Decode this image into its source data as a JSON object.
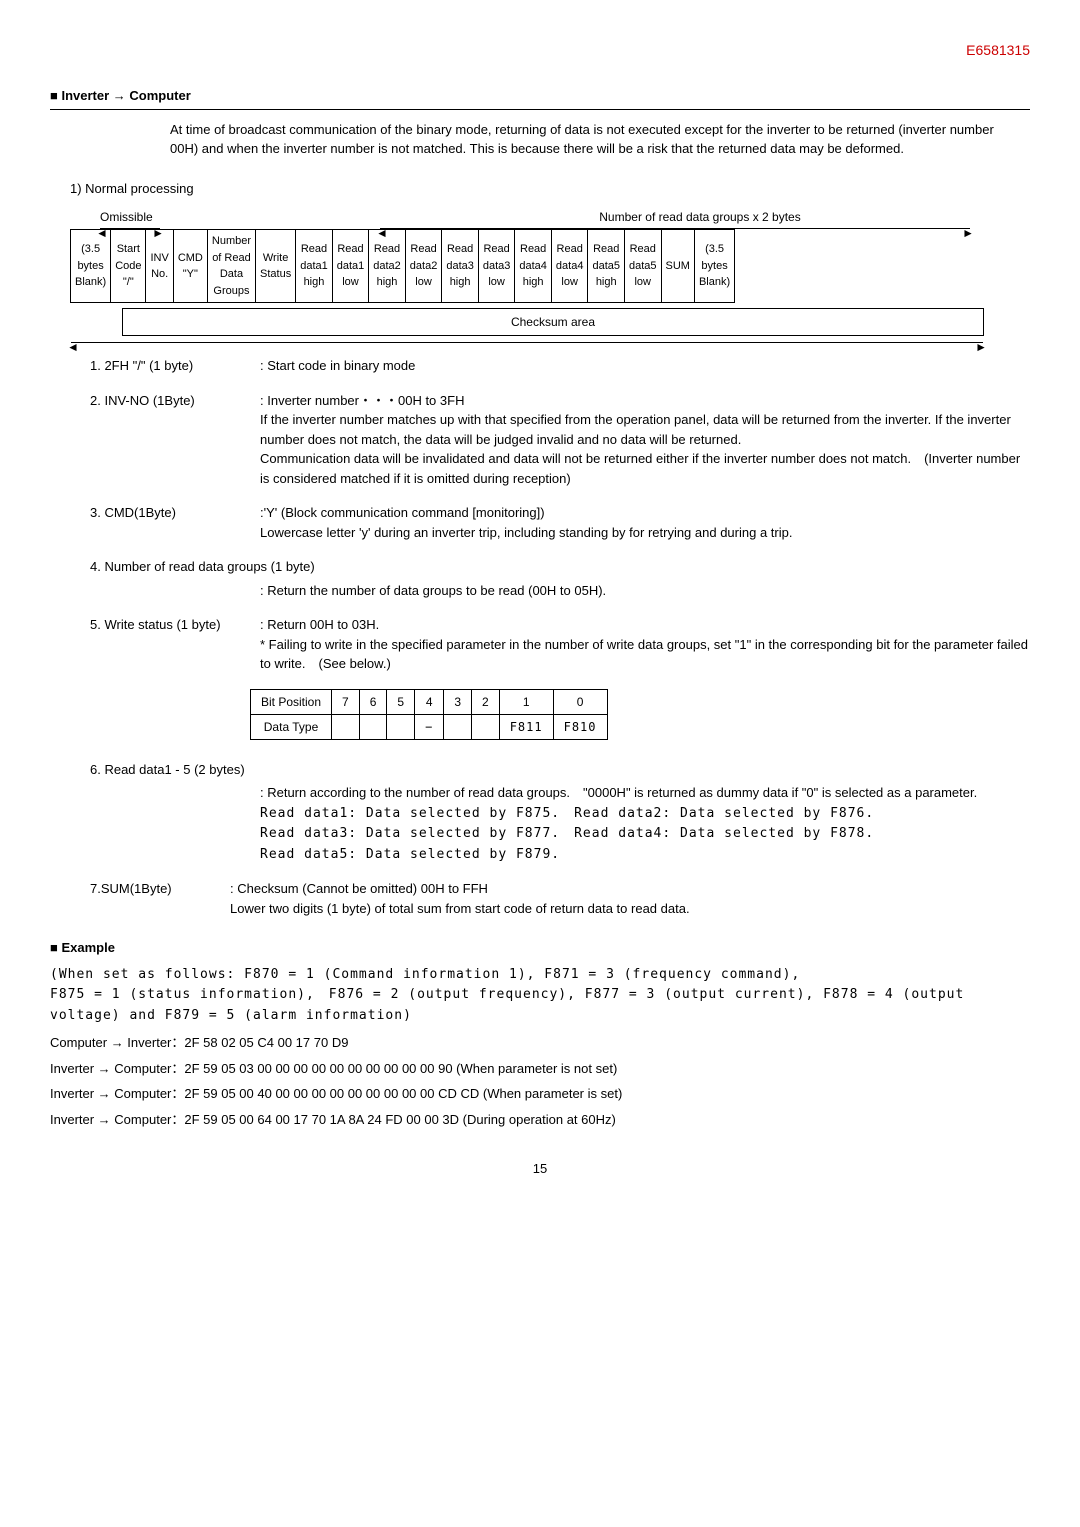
{
  "doc_id": "E6581315",
  "section_title": "■ Inverter → Computer",
  "intro": "At time of broadcast communication of the binary mode, returning of data is not executed except for the inverter to be returned (inverter number 00H) and when the inverter number is not matched. This is because there will be a risk that the returned data may be deformed.",
  "normal_processing": "1) Normal processing",
  "omissible": "Omissible",
  "num_read_label": "Number of read data groups x 2 bytes",
  "table": {
    "cols": [
      "(3.5\nbytes\nBlank)",
      "Start\nCode\n\"/\"",
      "INV\nNo.",
      "CMD\n\"Y\"",
      "Number\nof Read\nData\nGroups",
      "Write\nStatus",
      "Read\ndata1\nhigh",
      "Read\ndata1\nlow",
      "Read\ndata2\nhigh",
      "Read\ndata2\nlow",
      "Read\ndata3\nhigh",
      "Read\ndata3\nlow",
      "Read\ndata4\nhigh",
      "Read\ndata4\nlow",
      "Read\ndata5\nhigh",
      "Read\ndata5\nlow",
      "SUM",
      "(3.5\nbytes\nBlank)"
    ]
  },
  "checksum_area": "Checksum area",
  "defs": {
    "d1_label": "1. 2FH \"/\" (1 byte)",
    "d1_content": ": Start code in binary mode",
    "d2_label": "2. INV-NO (1Byte)",
    "d2_content": ": Inverter number・・・00H to 3FH",
    "d2_extra": "If the inverter number matches up with that specified from the operation panel, data will be returned from the inverter. If the inverter number does not match, the data will be judged invalid and no data will be returned.\nCommunication data will be invalidated and data will not be returned either if the inverter number does not match.　(Inverter number is considered matched if it is omitted during reception)",
    "d3_label": "3. CMD(1Byte)",
    "d3_content": ":'Y' (Block communication command [monitoring])",
    "d3_extra": "Lowercase letter 'y' during an inverter trip, including standing by for retrying and during a trip.",
    "d4_label": "4. Number of read data groups (1 byte)",
    "d4_content": ": Return the number of data groups to be read (00H to 05H).",
    "d5_label": "5. Write status (1 byte)",
    "d5_content": ": Return 00H to 03H.",
    "d5_extra": "* Failing to write in the specified parameter in the number of write data groups, set \"1\" in the corresponding bit for the parameter failed to write.　(See below.)",
    "d6_label": "6. Read data1 - 5 (2 bytes)",
    "d6_content": ": Return according to the number of read data groups.　\"0000H\" is returned as dummy data if \"0\" is selected as a parameter.",
    "d6_r1": "Read data1: Data selected by F875.　Read data2: Data selected by F876.",
    "d6_r2": "Read data3: Data selected by F877.　Read data4: Data selected by F878.",
    "d6_r3": "Read data5: Data selected by F879.",
    "d7_label": "7.SUM(1Byte)",
    "d7_content": ": Checksum (Cannot be omitted) 00H to FFH",
    "d7_extra": "Lower two digits (1 byte) of total sum from start code of return data to read data."
  },
  "bit_table": {
    "h": "Bit Position",
    "v": [
      "7",
      "6",
      "5",
      "4",
      "3",
      "2",
      "1",
      "0"
    ],
    "h2": "Data Type",
    "v2": [
      "",
      "",
      "",
      "−",
      "",
      "",
      "F811",
      "F810"
    ]
  },
  "example_heading": "■ Example",
  "example_body": "(When set as follows: F870 = 1 (Command information 1), F871 = 3 (frequency command),\nF875 = 1 (status information),　F876 = 2 (output frequency), F877 = 3 (output current), F878 = 4 (output voltage) and F879 = 5 (alarm information)",
  "ex_lines": [
    "Computer → Inverter：2F 58 02 05 C4 00 17 70 D9",
    "Inverter → Computer：2F 59 05 03 00 00 00 00 00 00 00 00 00 00 90 (When parameter is not set)",
    "Inverter → Computer：2F 59 05 00 40 00 00 00 00 00 00 00 00 00 CD CD (When parameter is set)",
    "Inverter → Computer：2F 59 05 00 64 00 17 70 1A 8A 24 FD 00 00 3D (During operation at 60Hz)"
  ],
  "page": "15"
}
